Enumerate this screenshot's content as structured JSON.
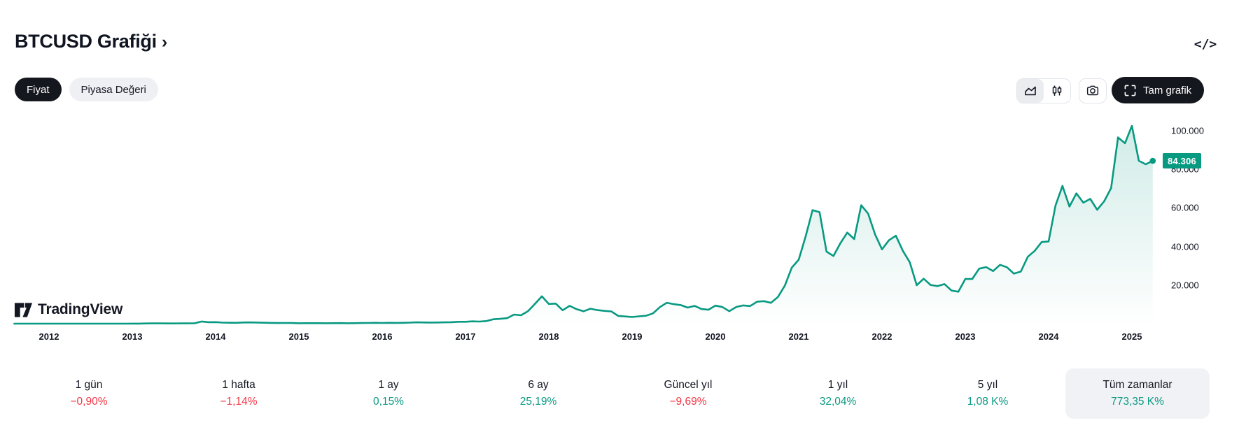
{
  "header": {
    "title": "BTCUSD Grafiği",
    "chevron": "›",
    "embed_icon": "</>"
  },
  "toggles": {
    "price_label": "Fiyat",
    "market_cap_label": "Piyasa Değeri"
  },
  "toolbar": {
    "chart_types": [
      {
        "name": "area",
        "icon": "area-chart-icon",
        "active": true
      },
      {
        "name": "candles",
        "icon": "candles-icon",
        "active": false
      }
    ],
    "snapshot_icon": "camera-icon",
    "fullscreen_label": "Tam grafik"
  },
  "logo": {
    "text": "TradingView"
  },
  "price_scale": {
    "last_price_label": "84.306",
    "last_price": 84306
  },
  "colors": {
    "accent": "#089981",
    "positive": "#089981",
    "negative": "#f23645",
    "badge_bg": "#089981",
    "dark_button_bg": "#15171e",
    "selected_bg": "#f1f2f5",
    "text": "#131722"
  },
  "chart_data": {
    "type": "area",
    "title": "BTCUSD Grafiği",
    "symbol": "BTCUSD",
    "grid": false,
    "legend": "none",
    "y_axis_side": "right",
    "ylim": [
      0,
      113000
    ],
    "x_ticks": [
      "2012",
      "2013",
      "2014",
      "2015",
      "2016",
      "2017",
      "2018",
      "2019",
      "2020",
      "2021",
      "2022",
      "2023",
      "2024",
      "2025"
    ],
    "y_ticks": [
      {
        "label": "100.000",
        "value": 100000
      },
      {
        "label": "80.000",
        "value": 80000
      },
      {
        "label": "60.000",
        "value": 60000
      },
      {
        "label": "40.000",
        "value": 40000
      },
      {
        "label": "20.000",
        "value": 20000
      }
    ],
    "line_color": "#089981",
    "series": [
      {
        "name": "BTCUSD",
        "start_month": "2011-08",
        "interval": "1M",
        "values": [
          8.2,
          5.1,
          3.2,
          3.0,
          4.7,
          5.4,
          4.9,
          4.9,
          5.0,
          5.2,
          6.7,
          9.4,
          10.1,
          12.4,
          11.2,
          12.5,
          13.4,
          20.4,
          33.4,
          93,
          139,
          128,
          97,
          106,
          141,
          141,
          204,
          1130,
          757,
          806,
          550,
          454,
          446,
          627,
          640,
          583,
          477,
          387,
          338,
          378,
          320,
          217,
          254,
          244,
          236,
          230,
          263,
          284,
          230,
          236,
          314,
          377,
          430,
          368,
          437,
          416,
          448,
          531,
          673,
          624,
          575,
          609,
          700,
          745,
          963,
          970,
          1179,
          1071,
          1347,
          2286,
          2480,
          2875,
          4703,
          4360,
          6468,
          10233,
          14156,
          10221,
          10397,
          6938,
          9240,
          7485,
          6404,
          7735,
          7033,
          6626,
          6317,
          4017,
          3743,
          3437,
          3816,
          4106,
          5320,
          8574,
          10817,
          10085,
          9630,
          8308,
          9199,
          7569,
          7193,
          9350,
          8599,
          6438,
          8658,
          9461,
          9137,
          11351,
          11655,
          10776,
          13797,
          19698,
          28994,
          33114,
          45137,
          58787,
          57750,
          37333,
          35041,
          41626,
          47166,
          43791,
          61319,
          56987,
          46217,
          38483,
          43193,
          45539,
          37714,
          31792,
          19926,
          23293,
          20050,
          19432,
          20490,
          17168,
          16548,
          23140,
          23147,
          28478,
          29268,
          27220,
          30477,
          29230,
          25932,
          26968,
          34657,
          37713,
          42265,
          42580,
          61199,
          71334,
          60637,
          67491,
          62678,
          64619,
          58970,
          63330,
          70215,
          96450,
          93429,
          102405,
          84349,
          82549,
          84306
        ]
      }
    ]
  },
  "stats": [
    {
      "label": "1 gün",
      "value": "−0,90%",
      "tone": "down",
      "selected": false
    },
    {
      "label": "1 hafta",
      "value": "−1,14%",
      "tone": "down",
      "selected": false
    },
    {
      "label": "1 ay",
      "value": "0,15%",
      "tone": "up",
      "selected": false
    },
    {
      "label": "6 ay",
      "value": "25,19%",
      "tone": "up",
      "selected": false
    },
    {
      "label": "Güncel yıl",
      "value": "−9,69%",
      "tone": "down",
      "selected": false
    },
    {
      "label": "1 yıl",
      "value": "32,04%",
      "tone": "up",
      "selected": false
    },
    {
      "label": "5 yıl",
      "value": "1,08 K%",
      "tone": "up",
      "selected": false
    },
    {
      "label": "Tüm zamanlar",
      "value": "773,35 K%",
      "tone": "up",
      "selected": true
    }
  ]
}
